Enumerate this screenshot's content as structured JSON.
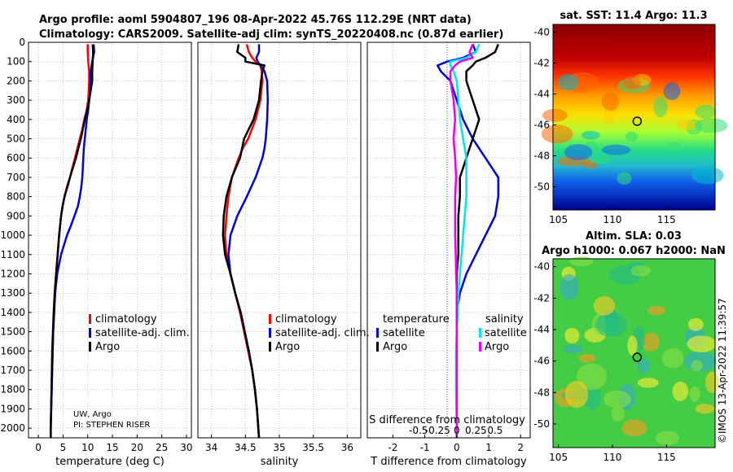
{
  "header": {
    "title_line1": "Argo profile: aoml 5904807_196 08-Apr-2022 45.76S 112.29E (NRT data)",
    "title_line2": "Climatology: CARS2009. Satellite-adj clim: synTS_20220408.nc (0.87d earlier)"
  },
  "credits": {
    "line1": "UW, Argo",
    "line2": "PI: STEPHEN RISER"
  },
  "watermark": "©IMOS 13-Apr-2022 11:39:57",
  "colors": {
    "climatology": "#ff0000",
    "satellite": "#0000dd",
    "argo": "#000000",
    "sat_s": "#00e5ee",
    "argo_s": "#ee00ee"
  },
  "chart_data": [
    {
      "type": "line",
      "id": "temperature",
      "xlabel": "temperature (deg C)",
      "xlim": [
        -2,
        31
      ],
      "xticks": [
        0,
        5,
        10,
        15,
        20,
        25,
        30
      ],
      "xtick_labels": [
        "0",
        "5",
        "10",
        "15",
        "20",
        "25",
        "30"
      ],
      "ylim": [
        2050,
        0
      ],
      "yticks": [
        0,
        100,
        200,
        300,
        400,
        500,
        600,
        700,
        800,
        900,
        1000,
        1100,
        1200,
        1300,
        1400,
        1500,
        1600,
        1700,
        1800,
        1900,
        2000
      ],
      "legend": [
        "climatology",
        "satellite-adj. clim.",
        "Argo"
      ],
      "depth": [
        10,
        50,
        100,
        150,
        200,
        250,
        300,
        350,
        400,
        450,
        500,
        550,
        600,
        650,
        700,
        750,
        800,
        850,
        900,
        950,
        1000,
        1100,
        1200,
        1300,
        1400,
        1500,
        1600,
        1800,
        2000,
        2050
      ],
      "series": [
        {
          "name": "climatology",
          "values": [
            10.0,
            10.0,
            10.1,
            10.3,
            10.3,
            10.2,
            10.1,
            9.8,
            9.3,
            8.9,
            8.4,
            7.9,
            7.4,
            6.9,
            6.4,
            5.9,
            5.3,
            4.9,
            4.6,
            4.4,
            4.2,
            3.9,
            3.6,
            3.4,
            3.2,
            3.0,
            2.9,
            2.7,
            2.5,
            2.5
          ]
        },
        {
          "name": "satellite-adj. clim.",
          "values": [
            11.2,
            11.3,
            10.9,
            10.6,
            10.5,
            10.5,
            10.3,
            10.1,
            9.8,
            9.6,
            9.4,
            9.2,
            9.1,
            9.0,
            8.9,
            8.7,
            8.4,
            8.0,
            7.3,
            6.6,
            5.8,
            4.6,
            3.8,
            3.4,
            3.2,
            3.0,
            2.9,
            2.7,
            2.5,
            2.5
          ]
        },
        {
          "name": "Argo",
          "values": [
            11.0,
            11.1,
            11.0,
            10.9,
            10.9,
            10.6,
            10.3,
            9.9,
            9.4,
            9.0,
            8.6,
            8.1,
            7.6,
            7.0,
            6.4,
            5.8,
            5.3,
            4.9,
            4.6,
            4.4,
            4.2,
            3.9,
            3.6,
            3.3,
            3.1,
            2.95,
            2.8,
            2.65,
            2.5,
            2.5
          ]
        }
      ]
    },
    {
      "type": "line",
      "id": "salinity",
      "xlabel": "salinity",
      "xlim": [
        33.8,
        36.2
      ],
      "xticks": [
        34,
        34.5,
        35,
        35.5,
        36
      ],
      "xtick_labels": [
        "34",
        "34.5",
        "35",
        "35.5",
        "36"
      ],
      "ylim": [
        2050,
        0
      ],
      "legend": [
        "climatology",
        "satellite-adj. clim.",
        "Argo"
      ],
      "depth": [
        10,
        50,
        80,
        100,
        120,
        150,
        200,
        300,
        400,
        500,
        550,
        600,
        700,
        800,
        900,
        1000,
        1100,
        1200,
        1300,
        1400,
        1500,
        1600,
        1700,
        1800,
        1900,
        2000,
        2050
      ],
      "series": [
        {
          "name": "climatology",
          "values": [
            34.52,
            34.55,
            34.6,
            34.65,
            34.72,
            34.74,
            34.75,
            34.72,
            34.65,
            34.54,
            34.46,
            34.4,
            34.3,
            34.25,
            34.22,
            34.2,
            34.22,
            34.28,
            34.35,
            34.42,
            34.48,
            34.54,
            34.6,
            34.64,
            34.67,
            34.69,
            34.7
          ]
        },
        {
          "name": "satellite-adj. clim.",
          "values": [
            34.7,
            34.7,
            34.66,
            34.68,
            34.72,
            34.78,
            34.82,
            34.83,
            34.82,
            34.8,
            34.78,
            34.75,
            34.65,
            34.52,
            34.38,
            34.28,
            34.25,
            34.28,
            34.35,
            34.43,
            34.49,
            34.55,
            34.6,
            34.64,
            34.67,
            34.69,
            34.7
          ]
        },
        {
          "name": "Argo",
          "values": [
            34.4,
            34.38,
            34.5,
            34.5,
            34.78,
            34.75,
            34.73,
            34.7,
            34.62,
            34.48,
            34.45,
            34.42,
            34.3,
            34.22,
            34.18,
            34.17,
            34.2,
            34.28,
            34.35,
            34.43,
            34.49,
            34.55,
            34.6,
            34.64,
            34.67,
            34.69,
            34.7
          ]
        }
      ]
    },
    {
      "type": "line",
      "id": "differences",
      "xlabel": "T difference from climatology",
      "xlabel_top": "S difference from climatology",
      "xlim": [
        -2.8,
        2.3
      ],
      "xticks": [
        -2,
        -1,
        0,
        1,
        2
      ],
      "xtick_labels": [
        "-2",
        "-1",
        "0",
        "1",
        "2"
      ],
      "top_ticks": [
        -0.5,
        -0.25,
        0,
        0.25,
        0.5
      ],
      "top_tick_labels": [
        "-0.5",
        "-0.25",
        "0",
        "0.25",
        "0.5"
      ],
      "ylim": [
        2050,
        0
      ],
      "legend_headers": [
        "temperature",
        "salinity"
      ],
      "legend_t": [
        "satellite",
        "Argo"
      ],
      "legend_s": [
        "satellite",
        "Argo"
      ],
      "depth": [
        10,
        50,
        80,
        100,
        120,
        150,
        200,
        300,
        400,
        500,
        600,
        700,
        800,
        900,
        1000,
        1100,
        1200,
        1300,
        1400,
        1500,
        1600,
        1800,
        2000,
        2050
      ],
      "series": [
        {
          "name": "satellite T",
          "values": [
            0.5,
            0.6,
            0.2,
            -0.3,
            -0.6,
            -0.5,
            -0.2,
            0.0,
            0.2,
            0.5,
            0.9,
            1.3,
            1.3,
            1.2,
            0.9,
            0.6,
            0.3,
            0.1,
            0.0,
            0.0,
            0.0,
            0.0,
            0.0,
            0.0
          ]
        },
        {
          "name": "Argo T",
          "values": [
            1.3,
            1.2,
            0.9,
            0.6,
            0.5,
            0.3,
            0.3,
            0.5,
            0.7,
            0.5,
            0.3,
            0.1,
            0.1,
            0.05,
            0.05,
            0.05,
            0.0,
            0.0,
            0.0,
            0.0,
            0.0,
            0.0,
            0.0,
            0.0
          ]
        },
        {
          "name": "satellite S",
          "values": [
            0.7,
            0.6,
            0.3,
            -0.2,
            -0.2,
            -0.1,
            0.0,
            0.05,
            0.1,
            0.2,
            0.3,
            0.3,
            0.3,
            0.25,
            0.2,
            0.15,
            0.1,
            0.05,
            0.03,
            0.0,
            -0.02,
            -0.02,
            0.0,
            0.0
          ]
        },
        {
          "name": "Argo S",
          "values": [
            0.5,
            0.4,
            0.5,
            0.1,
            -0.05,
            -0.2,
            -0.2,
            -0.1,
            -0.05,
            -0.1,
            -0.05,
            -0.02,
            -0.05,
            -0.05,
            -0.05,
            -0.03,
            -0.02,
            0.0,
            0.0,
            0.0,
            0.0,
            0.0,
            0.0,
            0.0
          ]
        }
      ]
    },
    {
      "type": "heatmap",
      "id": "sst_map",
      "title": "sat. SST: 11.4 Argo: 11.3",
      "xlim": [
        104.5,
        119.5
      ],
      "ylim": [
        -51.5,
        -39.5
      ],
      "xticks": [
        105,
        110,
        115
      ],
      "xtick_labels": [
        "105",
        "110",
        "115"
      ],
      "yticks": [
        -40,
        -42,
        -44,
        -46,
        -48,
        -50
      ],
      "ytick_labels": [
        "-40",
        "-42",
        "-44",
        "-46",
        "-48",
        "-50"
      ],
      "marker": {
        "lon": 112.29,
        "lat": -45.76
      }
    },
    {
      "type": "heatmap",
      "id": "sla_map",
      "title_line1": "Altim. SLA: 0.03",
      "title_line2": "Argo h1000: 0.067 h2000: NaN",
      "xlim": [
        104.5,
        119.5
      ],
      "ylim": [
        -51.5,
        -39.5
      ],
      "xticks": [
        105,
        110,
        115
      ],
      "xtick_labels": [
        "105",
        "110",
        "115"
      ],
      "yticks": [
        -40,
        -42,
        -44,
        -46,
        -48,
        -50
      ],
      "ytick_labels": [
        "-40",
        "-42",
        "-44",
        "-46",
        "-48",
        "-50"
      ],
      "marker": {
        "lon": 112.29,
        "lat": -45.76
      }
    }
  ]
}
